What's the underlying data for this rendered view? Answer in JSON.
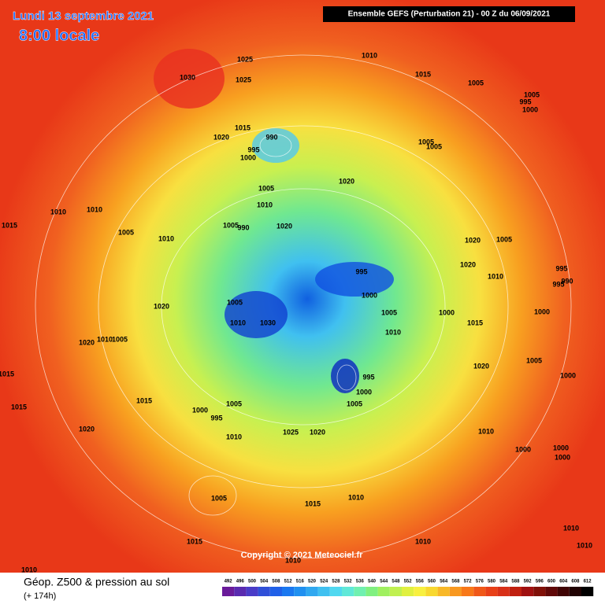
{
  "header": {
    "date": "Lundi 13 septembre 2021",
    "time": "8:00 locale",
    "model": "Ensemble GEFS  (Perturbation 21)  -  00 Z du 06/09/2021"
  },
  "map": {
    "pressure_labels": [
      "1025",
      "1030",
      "1025",
      "1010",
      "1015",
      "1005",
      "1005",
      "995",
      "1000",
      "1015",
      "990",
      "1020",
      "995",
      "1000",
      "1005",
      "1005",
      "1020",
      "1005",
      "1010",
      "1010",
      "1010",
      "1015",
      "1005",
      "1005",
      "990",
      "1020",
      "1010",
      "1020",
      "1005",
      "1020",
      "995",
      "1010",
      "995",
      "990",
      "995",
      "1000",
      "1020",
      "1005",
      "1000",
      "1000",
      "1005",
      "1015",
      "1010",
      "1030",
      "1010",
      "1020",
      "1010",
      "1005",
      "1015",
      "1020",
      "1005",
      "1000",
      "995",
      "1000",
      "1015",
      "1005",
      "1000",
      "1005",
      "995",
      "1015",
      "1010",
      "1020",
      "1025",
      "1020",
      "1010",
      "1000",
      "1000",
      "1000",
      "1005",
      "1015",
      "1010",
      "1015",
      "1010",
      "1010",
      "1010",
      "1010",
      "1010"
    ],
    "copyright": "Copyright © 2021 Meteociel.fr"
  },
  "footer": {
    "title": "Géop. Z500 & pression au sol",
    "lead": "(+ 174h)"
  },
  "scale": {
    "labels": [
      492,
      496,
      500,
      504,
      508,
      512,
      516,
      520,
      524,
      528,
      532,
      536,
      540,
      544,
      548,
      552,
      556,
      560,
      564,
      568,
      572,
      576,
      580,
      584,
      588,
      592,
      596,
      600,
      604,
      608,
      612
    ],
    "colors": [
      "#6a1b9a",
      "#5a2bb0",
      "#4a3cc8",
      "#3050d8",
      "#2060e8",
      "#1a78f0",
      "#2090f0",
      "#30a8f0",
      "#40c0f0",
      "#50d8f0",
      "#60e8d8",
      "#70f0b0",
      "#80f080",
      "#a0f060",
      "#c0f050",
      "#e0f040",
      "#f8f040",
      "#f8d830",
      "#f8b828",
      "#f89820",
      "#f87818",
      "#f05818",
      "#e84018",
      "#d83018",
      "#c02010",
      "#a01010",
      "#801008",
      "#600808",
      "#400404",
      "#200202",
      "#000000"
    ]
  }
}
